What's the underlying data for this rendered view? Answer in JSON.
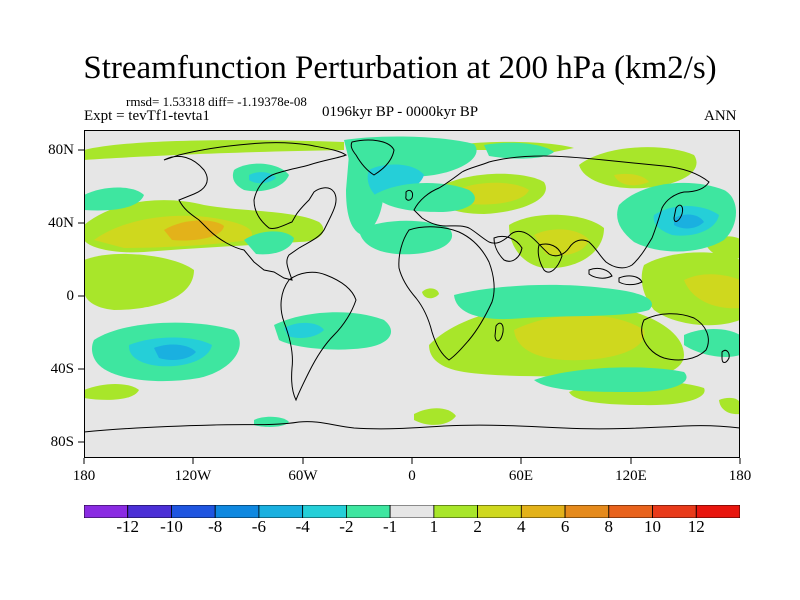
{
  "title": "Streamfunction Perturbation at 200 hPa (km2/s)",
  "stats": "rmsd= 1.53318 diff= -1.19378e-08",
  "experiment": "Expt = tevTf1-tevta1",
  "period": "0196kyr BP - 0000kyr BP",
  "season": "ANN",
  "y_ticks": [
    "80N",
    "40N",
    "0",
    "40S",
    "80S"
  ],
  "x_ticks": [
    "180",
    "120W",
    "60W",
    "0",
    "60E",
    "120E",
    "180"
  ],
  "colorbar": {
    "labels": [
      "-12",
      "-10",
      "-8",
      "-6",
      "-4",
      "-2",
      "-1",
      "1",
      "2",
      "4",
      "6",
      "8",
      "10",
      "12"
    ],
    "colors": [
      "#8a2be2",
      "#4b2fd6",
      "#1f55e0",
      "#0f88e0",
      "#1ab0e0",
      "#25cfd8",
      "#3ee6a0",
      "#e6e6e6",
      "#a8e62a",
      "#cfd81e",
      "#e3b21a",
      "#e58a1c",
      "#e8621c",
      "#e83a1a",
      "#e8160e"
    ]
  },
  "palette": {
    "neutral": "#e6e6e6",
    "green": "#a8e62a",
    "olive": "#cfd81e",
    "orange": "#e3b21a",
    "teal": "#3ee6a0",
    "cyan": "#25cfd8",
    "blue": "#1ab0e0"
  }
}
